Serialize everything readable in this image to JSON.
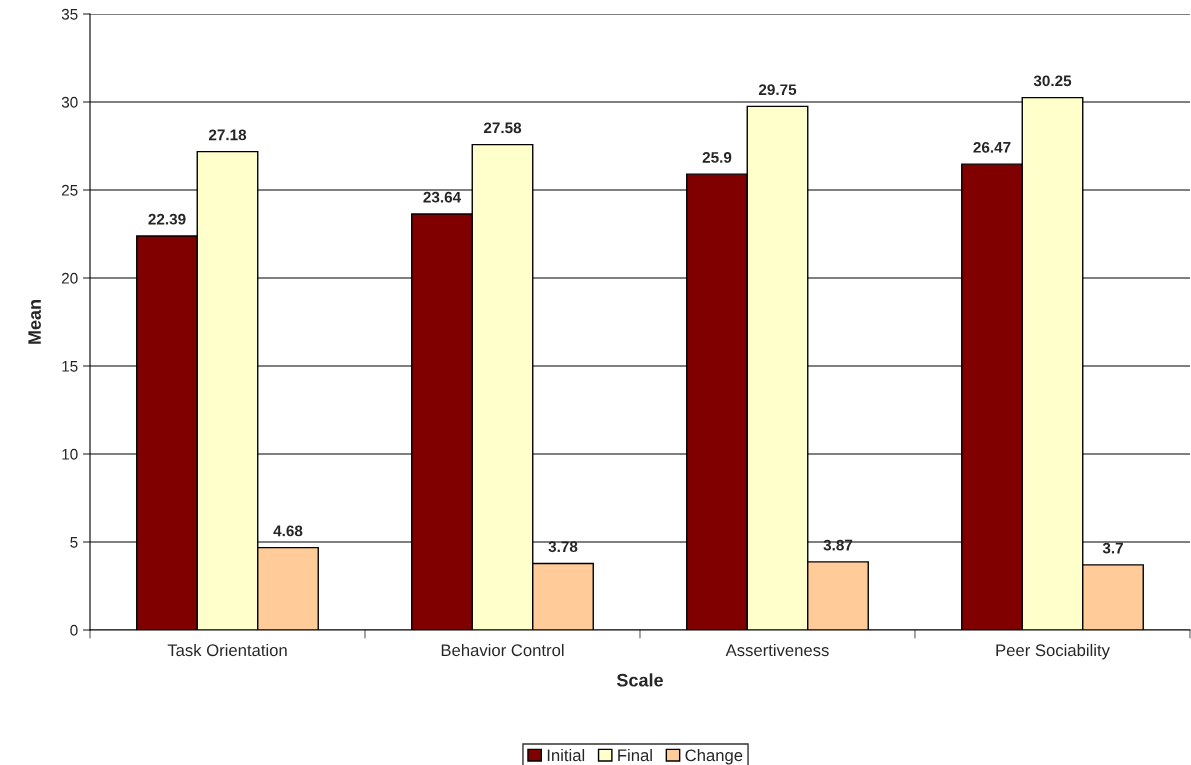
{
  "chart_data": {
    "type": "bar",
    "xlabel": "Scale",
    "ylabel": "Mean",
    "categories": [
      "Task Orientation",
      "Behavior Control",
      "Assertiveness",
      "Peer Sociability"
    ],
    "series": [
      {
        "name": "Initial",
        "color": "#800000",
        "values": [
          22.39,
          23.64,
          25.9,
          26.47
        ]
      },
      {
        "name": "Final",
        "color": "#ffffcc",
        "values": [
          27.18,
          27.58,
          29.75,
          30.25
        ]
      },
      {
        "name": "Change",
        "color": "#ffcc99",
        "values": [
          4.68,
          3.78,
          3.87,
          3.7
        ]
      }
    ],
    "ylim": [
      0,
      35
    ],
    "yticks": [
      0,
      5,
      10,
      15,
      20,
      25,
      30,
      35
    ],
    "grid": "y",
    "legend": "bottom",
    "data_labels": true
  }
}
